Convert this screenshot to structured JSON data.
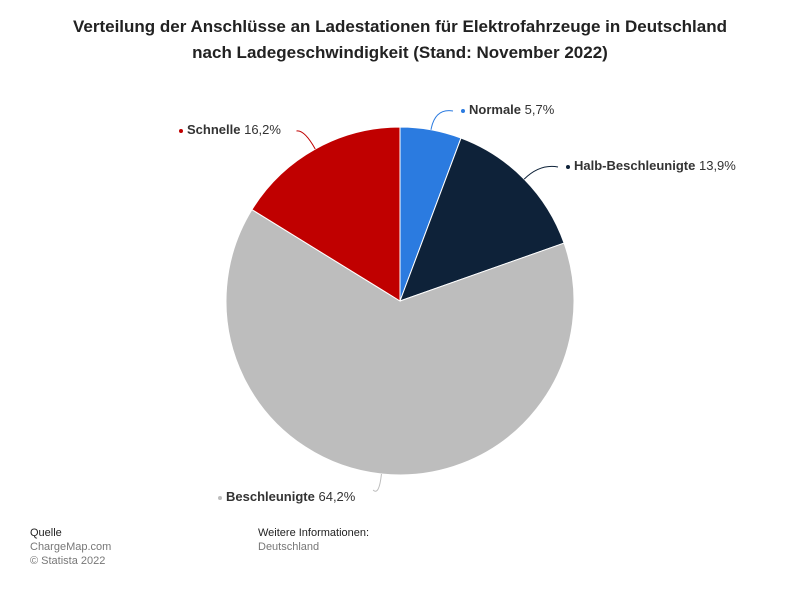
{
  "chart_data": {
    "type": "pie",
    "title": "Verteilung der Anschlüsse an Ladestationen für Elektrofahrzeuge in Deutschland nach Ladegeschwindigkeit (Stand: November 2022)",
    "categories": [
      "Normale",
      "Halb-Beschleunigte",
      "Beschleunigte",
      "Schnelle"
    ],
    "values": [
      5.7,
      13.9,
      64.2,
      16.2
    ],
    "value_labels": [
      "5,7%",
      "13,9%",
      "64,2%",
      "16,2%"
    ],
    "colors": [
      "#2b7be0",
      "#0e2239",
      "#bdbdbd",
      "#c00000"
    ]
  },
  "footer": {
    "source_heading": "Quelle",
    "source": "ChargeMap.com",
    "copyright": "© Statista 2022",
    "info_heading": "Weitere Informationen:",
    "info": "Deutschland"
  }
}
